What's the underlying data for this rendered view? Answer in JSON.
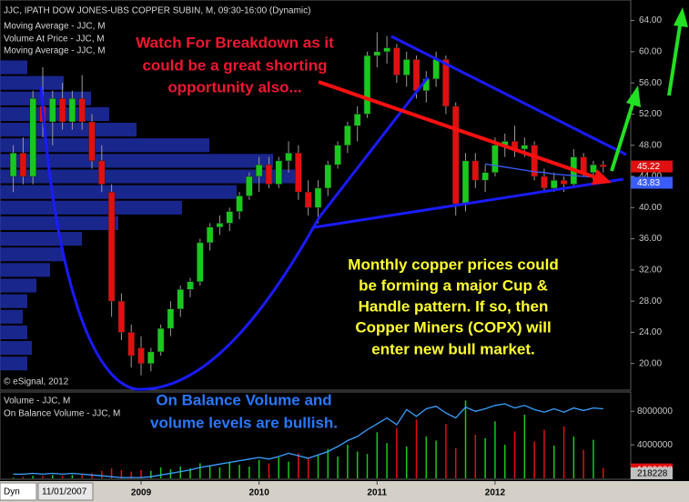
{
  "chart_data": {
    "type": "candlestick",
    "title": "JJC, IPATH DOW JONES-UBS COPPER SUBIN, M, 09:30-16:00 (Dynamic)",
    "legend_lines": [
      "Moving Average - JJC, M",
      "Volume At Price - JJC, M",
      "Moving Average - JJC, M"
    ],
    "copyright": "© eSignal, 2012",
    "annotations": {
      "red": [
        "Watch For Breakdown as it",
        "could be a great shorting",
        "opportunity also..."
      ],
      "yellow": [
        "Monthly copper prices could",
        "be forming a major Cup &",
        "Handle pattern. If so, then",
        "Copper Miners (COPX) will",
        "enter new bull market."
      ],
      "blue": [
        "On Balance Volume and",
        "volume levels are bullish."
      ]
    },
    "interval_label": "Dyn",
    "cursor_date": "11/01/2007",
    "up_color": "#19c81e",
    "down_color": "#e01010",
    "ma_color": "#3a5cff",
    "xlim": [
      -1.35,
      62.8
    ],
    "xticks": [
      {
        "value": 13,
        "label": "2009"
      },
      {
        "value": 25,
        "label": "2010"
      },
      {
        "value": 37,
        "label": "2011"
      },
      {
        "value": 49,
        "label": "2012"
      }
    ],
    "ylim": [
      16.7,
      66.4
    ],
    "yticks": [
      {
        "value": 20,
        "label": "20.00"
      },
      {
        "value": 24,
        "label": "24.00"
      },
      {
        "value": 28,
        "label": "28.00"
      },
      {
        "value": 32,
        "label": "32.00"
      },
      {
        "value": 36,
        "label": "36.00"
      },
      {
        "value": 40,
        "label": "40.00"
      },
      {
        "value": 44,
        "label": "44.00"
      },
      {
        "value": 48,
        "label": "48.00"
      },
      {
        "value": 52,
        "label": "52.00"
      },
      {
        "value": 56,
        "label": "56.00"
      },
      {
        "value": 60,
        "label": "60.00"
      },
      {
        "value": 64,
        "label": "64.00"
      }
    ],
    "open": [
      44,
      47,
      44,
      53,
      51,
      54,
      51,
      54,
      51,
      46,
      42,
      28,
      24,
      22,
      20,
      21.5,
      24.5,
      27,
      29.5,
      30.5,
      35.5,
      37.5,
      38,
      39.5,
      41.5,
      44,
      45.5,
      43,
      46,
      47,
      42,
      40,
      42.5,
      45.5,
      48,
      50.5,
      52,
      59.5,
      60,
      60.5,
      57,
      59,
      55,
      56.5,
      59,
      53,
      40.5,
      46,
      43.5,
      44.5,
      48,
      48.5,
      47.5,
      48,
      44,
      42.5,
      43.5,
      43,
      46.5,
      44.5,
      45.5
    ],
    "high": [
      48,
      49,
      55,
      58,
      55,
      56,
      55,
      57,
      52,
      48,
      43,
      29,
      25,
      23.5,
      22,
      25,
      28,
      30,
      31,
      36,
      38,
      39,
      40,
      42,
      44.5,
      46.5,
      46.5,
      46.5,
      48.5,
      48,
      43.5,
      43.5,
      46,
      48.5,
      51,
      53,
      60,
      62.5,
      62,
      61,
      60,
      59.5,
      57.5,
      60,
      59.5,
      53.5,
      47,
      47,
      45.5,
      49,
      49.5,
      50.5,
      49,
      48.5,
      45,
      44.5,
      44,
      47.5,
      47,
      46,
      46
    ],
    "low": [
      42,
      43,
      43,
      49,
      48,
      50,
      50,
      50,
      45,
      42,
      26,
      23,
      19.5,
      18.5,
      19,
      21,
      23.5,
      26,
      28.5,
      30,
      34.5,
      36.5,
      37,
      38.5,
      41,
      42,
      42.5,
      42.5,
      44.5,
      41,
      39,
      38,
      41.5,
      45,
      47,
      48.5,
      51.5,
      58,
      58.5,
      56,
      55.5,
      54,
      53.5,
      55.5,
      52,
      39,
      39.5,
      42.5,
      42,
      44,
      46.5,
      46.5,
      46.5,
      43.5,
      42,
      42,
      42,
      42.5,
      44,
      43.5,
      44.5
    ],
    "close": [
      47,
      44,
      54,
      51,
      54,
      51,
      54,
      51,
      46,
      43,
      28,
      24,
      21,
      20,
      21.5,
      24.5,
      27,
      29.5,
      30.5,
      35.5,
      37.5,
      38,
      39.5,
      41.5,
      44,
      45.5,
      43,
      46,
      47,
      42,
      40,
      42.5,
      45.5,
      48,
      50.5,
      52,
      59.5,
      60,
      60.5,
      57,
      59,
      55,
      56.5,
      59,
      53,
      40.5,
      46,
      43.5,
      44.5,
      48,
      48.5,
      47.5,
      48,
      44,
      42.5,
      43.5,
      43,
      46.5,
      44.5,
      45.5,
      45.22
    ],
    "ma": {
      "name": "Moving Average - JJC, M",
      "values": [
        null,
        null,
        null,
        null,
        null,
        null,
        null,
        null,
        null,
        null,
        null,
        null,
        null,
        null,
        null,
        null,
        null,
        null,
        null,
        null,
        null,
        null,
        null,
        null,
        null,
        null,
        null,
        null,
        null,
        null,
        null,
        null,
        null,
        null,
        null,
        null,
        null,
        null,
        null,
        null,
        null,
        null,
        null,
        null,
        null,
        null,
        null,
        null,
        45.6,
        45.4,
        45.2,
        45.0,
        44.8,
        44.6,
        44.5,
        44.3,
        44.2,
        44.1,
        44.0,
        43.9,
        43.83
      ]
    },
    "volume_at_price": {
      "prices": [
        20,
        22,
        24,
        26,
        28,
        30,
        32,
        34,
        36,
        38,
        40,
        42,
        44,
        46,
        48,
        50,
        52,
        54,
        56,
        58
      ],
      "values": [
        30,
        35,
        30,
        25,
        30,
        40,
        55,
        70,
        90,
        130,
        200,
        260,
        330,
        300,
        230,
        150,
        120,
        100,
        70,
        30
      ],
      "max": 693
    },
    "volume_panel": {
      "titles": [
        "Volume - JJC, M",
        "On Balance Volume - JJC, M"
      ],
      "ylim": [
        0,
        10200000
      ],
      "yticks": [
        4000000,
        8000000
      ],
      "volume": [
        100000,
        200000,
        300000,
        300000,
        400000,
        300000,
        400000,
        500000,
        600000,
        900000,
        1200000,
        1000000,
        800000,
        1000000,
        900000,
        1300000,
        1100000,
        1400000,
        1200000,
        1800000,
        1500000,
        1300000,
        2000000,
        1600000,
        1400000,
        2200000,
        1800000,
        2500000,
        2000000,
        3000000,
        2400000,
        2800000,
        3500000,
        2600000,
        4000000,
        3200000,
        2900000,
        5500000,
        4200000,
        6000000,
        3800000,
        7000000,
        5000000,
        4500000,
        6500000,
        3600000,
        9300000,
        5200000,
        4800000,
        6800000,
        4000000,
        5600000,
        7600000,
        4400000,
        5800000,
        3900000,
        6200000,
        5000000,
        3400000,
        4600000,
        1232232
      ],
      "obv": {
        "name": "On Balance Volume - JJC, M",
        "color": "#3aa0ff",
        "values": [
          500000,
          500000,
          600000,
          500000,
          600000,
          500000,
          600000,
          500000,
          400000,
          300000,
          200000,
          100000,
          100000,
          100000,
          200000,
          400000,
          600000,
          800000,
          1000000,
          1300000,
          1500000,
          1700000,
          1900000,
          2100000,
          2300000,
          2500000,
          2300000,
          2600000,
          3000000,
          2700000,
          2400000,
          2800000,
          3200000,
          3800000,
          4500000,
          5000000,
          5800000,
          6500000,
          7200000,
          6400000,
          8200000,
          7400000,
          8300000,
          8600000,
          7800000,
          7200000,
          8500000,
          8000000,
          8300000,
          8700000,
          8900000,
          8400000,
          8700000,
          8200000,
          7900000,
          8300000,
          7900000,
          8400000,
          8100000,
          8400000,
          8300000
        ]
      },
      "second_value": 218228
    }
  }
}
